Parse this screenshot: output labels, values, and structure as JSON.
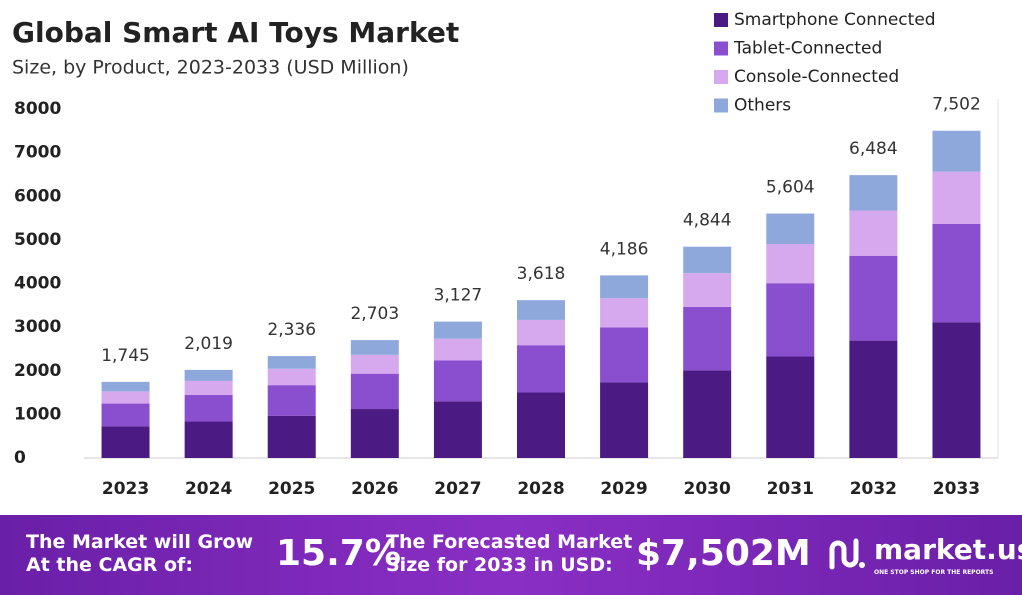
{
  "chart_data": {
    "type": "stacked-bar",
    "title": "Global Smart AI Toys Market",
    "subtitle": "Size, by Product, 2023-2033 (USD Million)",
    "categories": [
      "2023",
      "2024",
      "2025",
      "2026",
      "2027",
      "2028",
      "2029",
      "2030",
      "2031",
      "2032",
      "2033"
    ],
    "series": [
      {
        "name": "Smartphone Connected",
        "color": "#4b1a82",
        "values": [
          724,
          838,
          969,
          1122,
          1298,
          1501,
          1737,
          2010,
          2326,
          2691,
          3113
        ]
      },
      {
        "name": "Tablet-Connected",
        "color": "#8a4fcf",
        "values": [
          524,
          606,
          701,
          811,
          938,
          1085,
          1256,
          1453,
          1681,
          1945,
          2251
        ]
      },
      {
        "name": "Console-Connected",
        "color": "#d6a8ee",
        "values": [
          279,
          323,
          374,
          432,
          500,
          579,
          670,
          775,
          897,
          1037,
          1200
        ]
      },
      {
        "name": "Others",
        "color": "#8fa8dc",
        "values": [
          218,
          252,
          292,
          338,
          391,
          453,
          523,
          606,
          700,
          811,
          938
        ]
      }
    ],
    "totals": [
      1745,
      2019,
      2336,
      2703,
      3127,
      3618,
      4186,
      4844,
      5604,
      6484,
      7502
    ],
    "total_labels": [
      "1,745",
      "2,019",
      "2,336",
      "2,703",
      "3,127",
      "3,618",
      "4,186",
      "4,844",
      "5,604",
      "6,484",
      "7,502"
    ],
    "ylim": [
      0,
      8000
    ],
    "yticks": [
      0,
      1000,
      2000,
      3000,
      4000,
      5000,
      6000,
      7000,
      8000
    ],
    "legend": "top-right"
  },
  "footer": {
    "cagr_text": [
      "The Market will Grow",
      "At the CAGR of:"
    ],
    "cagr_value": "15.7%",
    "forecast_text": [
      "The Forecasted Market",
      "Size for 2033 in USD:"
    ],
    "forecast_value": "$7,502M",
    "brand": "market.us",
    "tagline": "ONE STOP SHOP FOR THE REPORTS"
  }
}
